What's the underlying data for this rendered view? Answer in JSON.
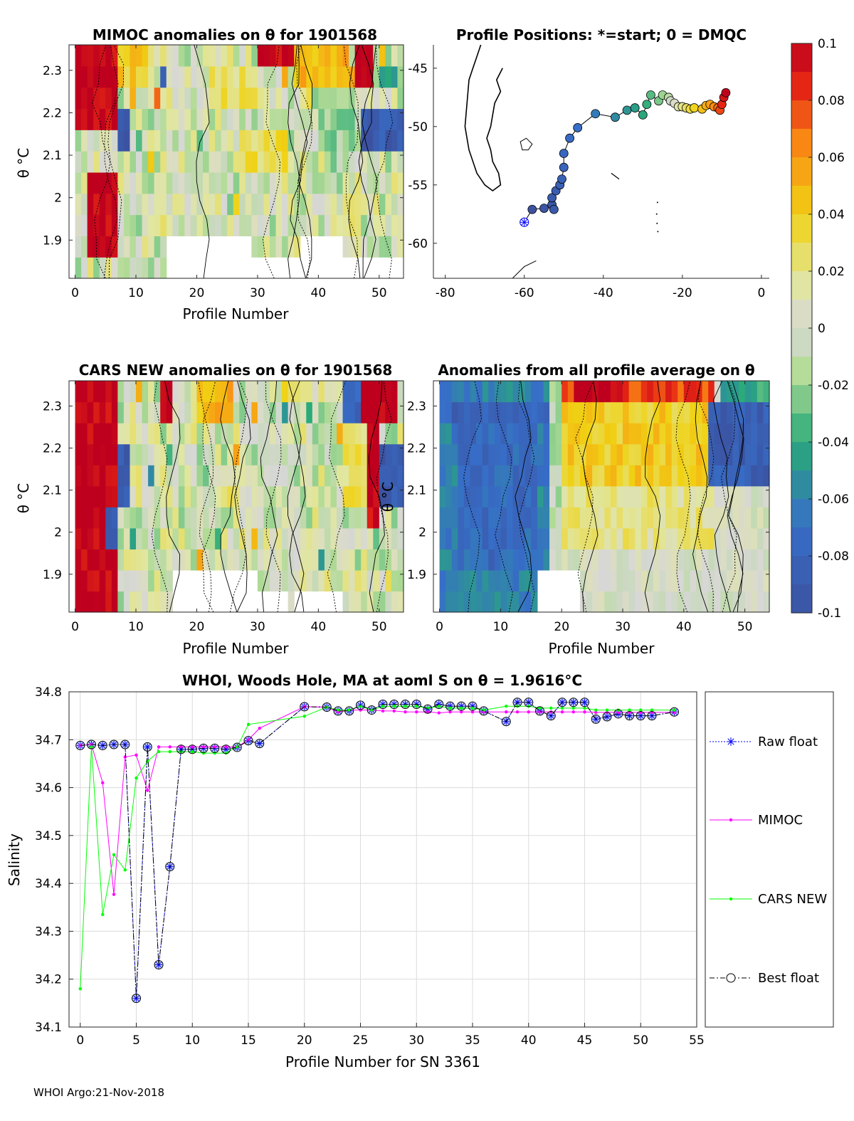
{
  "figure": {
    "footer": "WHOI Argo:21-Nov-2018"
  },
  "panels": {
    "mimoc": {
      "title": "MIMOC anomalies on θ  for 1901568",
      "xlabel": "Profile Number",
      "ylabel": "θ °C"
    },
    "map": {
      "title": "Profile Positions: *=start; 0 = DMQC"
    },
    "cars": {
      "title": "CARS NEW anomalies on θ for 1901568",
      "xlabel": "Profile Number",
      "ylabel": "θ °C"
    },
    "allavg": {
      "title": "Anomalies from all profile average on θ",
      "xlabel": "Profile Number",
      "ylabel": "θ °C"
    },
    "salinity": {
      "title": "WHOI, Woods Hole, MA at aoml S on θ = 1.9616°C",
      "xlabel": "Profile Number for SN 3361",
      "ylabel": "Salinity"
    }
  },
  "colorbar": {
    "ticks": [
      "0.1",
      "0.08",
      "0.06",
      "0.04",
      "0.02",
      "0",
      "-0.02",
      "-0.04",
      "-0.06",
      "-0.08",
      "-0.1"
    ]
  },
  "chart_data": [
    {
      "id": "mimoc",
      "type": "heatmap",
      "title": "MIMOC anomalies on θ  for 1901568",
      "xlabel": "Profile Number",
      "ylabel": "θ °C",
      "xlim": [
        -1,
        54
      ],
      "ylim": [
        1.81,
        2.36
      ],
      "xticks": [
        0,
        10,
        20,
        30,
        40,
        50
      ],
      "yticks": [
        1.9,
        2.0,
        2.1,
        2.2,
        2.3
      ],
      "ytick_labels": [
        "1.9",
        "2",
        "2.1",
        "2.2",
        "2.3"
      ],
      "blocks": [
        {
          "x0": 0,
          "x1": 7,
          "t0": 2.18,
          "t1": 2.36,
          "v": 0.1
        },
        {
          "x0": 2,
          "x1": 7,
          "t0": 1.84,
          "t1": 2.06,
          "v": 0.1
        },
        {
          "x0": 7,
          "x1": 9,
          "t0": 2.12,
          "t1": 2.22,
          "v": -0.09
        },
        {
          "x0": 7,
          "x1": 12,
          "t0": 2.25,
          "t1": 2.36,
          "v": 0.04
        },
        {
          "x0": 14,
          "x1": 15,
          "t0": 2.25,
          "t1": 2.31,
          "v": -0.09
        },
        {
          "x0": 22,
          "x1": 30,
          "t0": 2.22,
          "t1": 2.3,
          "v": 0.025
        },
        {
          "x0": 27,
          "x1": 35,
          "t0": 2.05,
          "t1": 2.16,
          "v": 0.03
        },
        {
          "x0": 30,
          "x1": 36,
          "t0": 2.3,
          "t1": 2.36,
          "v": 0.1
        },
        {
          "x0": 36,
          "x1": 45,
          "t0": 2.28,
          "t1": 2.36,
          "v": 0.05
        },
        {
          "x0": 40,
          "x1": 46,
          "t0": 2.1,
          "t1": 2.25,
          "v": -0.02
        },
        {
          "x0": 46,
          "x1": 49,
          "t0": 2.28,
          "t1": 2.36,
          "v": 0.1
        },
        {
          "x0": 47,
          "x1": 54,
          "t0": 2.12,
          "t1": 2.22,
          "v": -0.09
        },
        {
          "x0": 50,
          "x1": 53,
          "t0": 2.27,
          "t1": 2.33,
          "v": -0.04
        }
      ],
      "blank_regions": [
        {
          "x0": 15,
          "x1": 29,
          "t0": 1.81,
          "t1": 1.91
        },
        {
          "x0": 37,
          "x1": 44,
          "t0": 1.81,
          "t1": 1.91
        },
        {
          "x0": 29,
          "x1": 54,
          "t0": 1.81,
          "t1": 1.86
        }
      ]
    },
    {
      "id": "map",
      "type": "scatter",
      "title": "Profile Positions: *=start; 0 = DMQC",
      "xlim": [
        -83,
        2
      ],
      "ylim": [
        -63,
        -43
      ],
      "xticks": [
        -80,
        -60,
        -40,
        -20,
        0
      ],
      "yticks": [
        -45,
        -50,
        -55,
        -60
      ],
      "start": {
        "lon": -60,
        "lat": -58.2
      },
      "lon": [
        -60,
        -58,
        -55,
        -53,
        -52.5,
        -53,
        -52,
        -51,
        -50.5,
        -50,
        -50,
        -48.5,
        -46.5,
        -42,
        -37,
        -34,
        -32,
        -30,
        -29,
        -28,
        -26,
        -25,
        -23.5,
        -23,
        -22,
        -21,
        -20,
        -19,
        -18,
        -17,
        -15,
        -14,
        -13,
        -12,
        -11,
        -10.5,
        -10,
        -9.5,
        -9
      ],
      "lat": [
        -58.2,
        -57.1,
        -57,
        -56.7,
        -57.1,
        -56.1,
        -55.5,
        -55,
        -54.5,
        -53.5,
        -52.3,
        -51,
        -50.1,
        -48.9,
        -49.2,
        -48.6,
        -48.4,
        -49,
        -48.1,
        -47.3,
        -47.8,
        -47.3,
        -47.5,
        -47.8,
        -48,
        -48.3,
        -48.3,
        -48.4,
        -48.5,
        -48.4,
        -48.5,
        -48.2,
        -48.1,
        -48.3,
        -48.4,
        -48.6,
        -48.1,
        -47.5,
        -47.1
      ],
      "vals": [
        -0.1,
        -0.1,
        -0.097,
        -0.094,
        -0.092,
        -0.09,
        -0.088,
        -0.085,
        -0.083,
        -0.08,
        -0.078,
        -0.074,
        -0.07,
        -0.064,
        -0.056,
        -0.05,
        -0.046,
        -0.042,
        -0.038,
        -0.032,
        -0.026,
        -0.02,
        -0.012,
        -0.004,
        0.004,
        0.012,
        0.02,
        0.026,
        0.032,
        0.038,
        0.046,
        0.052,
        0.058,
        0.064,
        0.07,
        0.078,
        0.085,
        0.092,
        0.1
      ]
    },
    {
      "id": "cars",
      "type": "heatmap",
      "title": "CARS NEW anomalies on θ for 1901568",
      "xlabel": "Profile Number",
      "ylabel": "θ °C",
      "xlim": [
        -1,
        54
      ],
      "ylim": [
        1.81,
        2.36
      ],
      "xticks": [
        0,
        10,
        20,
        30,
        40,
        50
      ],
      "yticks": [
        1.9,
        2.0,
        2.1,
        2.2,
        2.3
      ],
      "ytick_labels": [
        "1.9",
        "2",
        "2.1",
        "2.2",
        "2.3"
      ],
      "blocks": [
        {
          "x0": 0,
          "x1": 7,
          "t0": 1.81,
          "t1": 2.36,
          "v": 0.1
        },
        {
          "x0": 5,
          "x1": 7,
          "t0": 1.98,
          "t1": 2.04,
          "v": -0.09
        },
        {
          "x0": 7,
          "x1": 9,
          "t0": 2.05,
          "t1": 2.22,
          "v": -0.09
        },
        {
          "x0": 14,
          "x1": 16,
          "t0": 2.28,
          "t1": 2.36,
          "v": 0.1
        },
        {
          "x0": 20,
          "x1": 26,
          "t0": 2.27,
          "t1": 2.34,
          "v": 0.05
        },
        {
          "x0": 34,
          "x1": 39,
          "t0": 2.3,
          "t1": 2.36,
          "v": 0.03
        },
        {
          "x0": 44,
          "x1": 48,
          "t0": 2.05,
          "t1": 2.25,
          "v": 0.025
        },
        {
          "x0": 44,
          "x1": 48,
          "t0": 2.28,
          "t1": 2.36,
          "v": -0.08
        },
        {
          "x0": 47,
          "x1": 53,
          "t0": 2.25,
          "t1": 2.36,
          "v": 0.1
        },
        {
          "x0": 48,
          "x1": 50,
          "t0": 2.02,
          "t1": 2.25,
          "v": 0.1
        },
        {
          "x0": 50,
          "x1": 54,
          "t0": 2.08,
          "t1": 2.22,
          "v": -0.09
        }
      ],
      "blank_regions": [
        {
          "x0": 16,
          "x1": 35,
          "t0": 1.81,
          "t1": 1.86
        },
        {
          "x0": 36,
          "x1": 44,
          "t0": 1.81,
          "t1": 1.86
        },
        {
          "x0": 16,
          "x1": 30,
          "t0": 1.86,
          "t1": 1.91
        }
      ]
    },
    {
      "id": "allavg",
      "type": "heatmap",
      "title": "Anomalies from all profile average on θ",
      "xlabel": "Profile Number",
      "ylabel": "θ °C",
      "xlim": [
        -1,
        54
      ],
      "ylim": [
        1.81,
        2.36
      ],
      "xticks": [
        0,
        10,
        20,
        30,
        40,
        50
      ],
      "yticks": [
        1.9,
        2.0,
        2.1,
        2.2,
        2.3
      ],
      "ytick_labels": [
        "1.9",
        "2",
        "2.1",
        "2.2",
        "2.3"
      ],
      "blocks": [
        {
          "x0": 0,
          "x1": 18,
          "t0": 1.81,
          "t1": 2.36,
          "v": -0.06
        },
        {
          "x0": 0,
          "x1": 18,
          "t0": 2.24,
          "t1": 2.29,
          "v": -0.08
        },
        {
          "x0": 3,
          "x1": 16,
          "t0": 1.91,
          "t1": 2.24,
          "v": -0.075
        },
        {
          "x0": 18,
          "x1": 20,
          "t0": 1.91,
          "t1": 2.36,
          "v": -0.01
        },
        {
          "x0": 20,
          "x1": 45,
          "t0": 2.1,
          "t1": 2.3,
          "v": 0.04
        },
        {
          "x0": 20,
          "x1": 45,
          "t0": 2.3,
          "t1": 2.36,
          "v": 0.08
        },
        {
          "x0": 22,
          "x1": 30,
          "t0": 2.32,
          "t1": 2.36,
          "v": 0.1
        },
        {
          "x0": 20,
          "x1": 45,
          "t0": 1.95,
          "t1": 2.1,
          "v": 0.02
        },
        {
          "x0": 44,
          "x1": 54,
          "t0": 2.12,
          "t1": 2.3,
          "v": -0.085
        },
        {
          "x0": 46,
          "x1": 54,
          "t0": 2.3,
          "t1": 2.36,
          "v": -0.04
        }
      ],
      "blank_regions": [
        {
          "x0": 16,
          "x1": 23,
          "t0": 1.81,
          "t1": 1.91
        }
      ]
    },
    {
      "id": "salinity",
      "type": "line",
      "title": "WHOI, Woods Hole, MA at aoml S on θ = 1.9616°C",
      "xlabel": "Profile Number for SN 3361",
      "ylabel": "Salinity",
      "xlim": [
        -1,
        55
      ],
      "ylim": [
        34.1,
        34.8
      ],
      "xticks": [
        0,
        5,
        10,
        15,
        20,
        25,
        30,
        35,
        40,
        45,
        50,
        55
      ],
      "yticks": [
        34.1,
        34.2,
        34.3,
        34.4,
        34.5,
        34.6,
        34.7,
        34.8
      ],
      "ytick_labels": [
        "34.1",
        "34.2",
        "34.3",
        "34.4",
        "34.5",
        "34.6",
        "34.7",
        "34.8"
      ],
      "legend": [
        "Raw float",
        "MIMOC",
        "CARS NEW",
        "Best float"
      ],
      "series": [
        {
          "name": "Raw float",
          "color": "#0000ff",
          "x": [
            0,
            1,
            2,
            3,
            4,
            5,
            6,
            7,
            8,
            9,
            10,
            11,
            12,
            13,
            14,
            15,
            16,
            20,
            22,
            23,
            24,
            25,
            26,
            27,
            28,
            29,
            30,
            31,
            32,
            33,
            34,
            35,
            36,
            38,
            39,
            40,
            41,
            42,
            43,
            44,
            45,
            46,
            47,
            48,
            49,
            50,
            51,
            53
          ],
          "y": [
            34.688,
            34.69,
            34.688,
            34.69,
            34.69,
            34.16,
            34.685,
            34.23,
            34.435,
            34.68,
            34.68,
            34.682,
            34.682,
            34.68,
            34.684,
            34.698,
            34.692,
            34.769,
            34.768,
            34.76,
            34.76,
            34.772,
            34.762,
            34.774,
            34.774,
            34.774,
            34.774,
            34.764,
            34.774,
            34.77,
            34.77,
            34.77,
            34.76,
            34.738,
            34.778,
            34.778,
            34.76,
            34.75,
            34.778,
            34.778,
            34.778,
            34.743,
            34.748,
            34.754,
            34.75,
            34.75,
            34.75,
            34.758
          ]
        },
        {
          "name": "MIMOC",
          "color": "#ff00ff",
          "x": [
            0,
            1,
            2,
            3,
            4,
            5,
            6,
            7,
            8,
            9,
            10,
            11,
            12,
            13,
            14,
            15,
            16,
            20,
            22,
            23,
            24,
            25,
            26,
            27,
            28,
            29,
            30,
            31,
            32,
            33,
            34,
            35,
            36,
            38,
            39,
            40,
            41,
            42,
            43,
            44,
            45,
            46,
            47,
            48,
            49,
            50,
            51,
            53
          ],
          "y": [
            34.688,
            34.69,
            34.61,
            34.377,
            34.664,
            34.668,
            34.594,
            34.685,
            34.685,
            34.685,
            34.685,
            34.685,
            34.685,
            34.685,
            34.685,
            34.7,
            34.724,
            34.769,
            34.768,
            34.758,
            34.762,
            34.762,
            34.762,
            34.76,
            34.76,
            34.758,
            34.758,
            34.758,
            34.756,
            34.758,
            34.758,
            34.758,
            34.758,
            34.758,
            34.758,
            34.758,
            34.758,
            34.758,
            34.758,
            34.758,
            34.758,
            34.757,
            34.757,
            34.757,
            34.757,
            34.757,
            34.757,
            34.757
          ]
        },
        {
          "name": "CARS NEW",
          "color": "#00ff00",
          "x": [
            0,
            1,
            2,
            3,
            4,
            5,
            6,
            7,
            8,
            9,
            10,
            11,
            12,
            13,
            14,
            15,
            20,
            22,
            23,
            24,
            25,
            26,
            27,
            28,
            29,
            30,
            31,
            32,
            33,
            34,
            35,
            36,
            38,
            39,
            40,
            41,
            42,
            43,
            44,
            45,
            46,
            47,
            48,
            49,
            50,
            51,
            53
          ],
          "y": [
            34.18,
            34.685,
            34.335,
            34.46,
            34.428,
            34.62,
            34.655,
            34.675,
            34.675,
            34.675,
            34.675,
            34.672,
            34.672,
            34.672,
            34.685,
            34.732,
            34.749,
            34.768,
            34.762,
            34.762,
            34.77,
            34.762,
            34.77,
            34.77,
            34.77,
            34.77,
            34.766,
            34.77,
            34.766,
            34.766,
            34.766,
            34.762,
            34.77,
            34.77,
            34.77,
            34.766,
            34.766,
            34.766,
            34.766,
            34.766,
            34.762,
            34.762,
            34.762,
            34.762,
            34.762,
            34.762,
            34.762
          ]
        },
        {
          "name": "Best float",
          "color": "#000000",
          "x": [
            0,
            1,
            2,
            3,
            4,
            5,
            6,
            7,
            8,
            9,
            10,
            11,
            12,
            13,
            14,
            15,
            16,
            20,
            22,
            23,
            24,
            25,
            26,
            27,
            28,
            29,
            30,
            31,
            32,
            33,
            34,
            35,
            36,
            38,
            39,
            40,
            41,
            42,
            43,
            44,
            45,
            46,
            47,
            48,
            49,
            50,
            51,
            53
          ],
          "y": [
            34.688,
            34.69,
            34.688,
            34.69,
            34.69,
            34.16,
            34.685,
            34.23,
            34.435,
            34.68,
            34.68,
            34.682,
            34.682,
            34.68,
            34.684,
            34.698,
            34.692,
            34.769,
            34.768,
            34.76,
            34.76,
            34.772,
            34.762,
            34.774,
            34.774,
            34.774,
            34.774,
            34.764,
            34.774,
            34.77,
            34.77,
            34.77,
            34.76,
            34.738,
            34.778,
            34.778,
            34.76,
            34.75,
            34.778,
            34.778,
            34.778,
            34.743,
            34.748,
            34.754,
            34.75,
            34.75,
            34.75,
            34.758
          ]
        }
      ]
    }
  ]
}
